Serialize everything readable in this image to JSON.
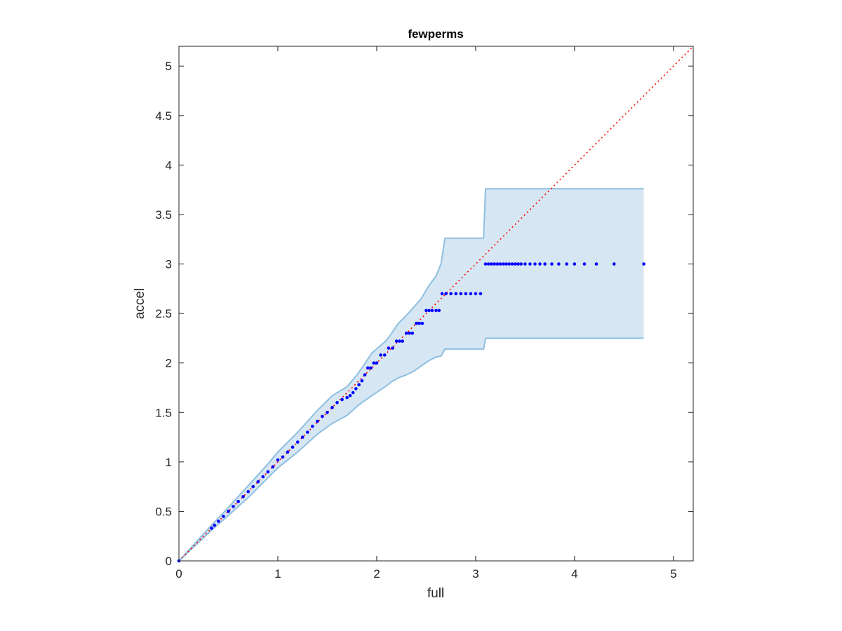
{
  "chart_data": {
    "type": "scatter",
    "title": "fewperms",
    "xlabel": "full",
    "ylabel": "accel",
    "xlim": [
      0,
      5.2
    ],
    "ylim": [
      0,
      5.2
    ],
    "xticks": [
      0,
      1,
      2,
      3,
      4,
      5
    ],
    "xtick_labels": [
      "0",
      "1",
      "2",
      "3",
      "4",
      "5"
    ],
    "yticks": [
      0,
      0.5,
      1,
      1.5,
      2,
      2.5,
      3,
      3.5,
      4,
      4.5,
      5
    ],
    "ytick_labels": [
      "0",
      "0.5",
      "1",
      "1.5",
      "2",
      "2.5",
      "3",
      "3.5",
      "4",
      "4.5",
      "5"
    ],
    "grid": false,
    "colors": {
      "points": "#0000ff",
      "reference_line": "#ff0000",
      "band_fill": "#d6e6f3",
      "band_edge": "#8fbfe0"
    },
    "reference_line": {
      "x": [
        0,
        5.2
      ],
      "y": [
        0,
        5.2
      ],
      "style": "dotted"
    },
    "confidence_band": {
      "x": [
        0,
        0.33,
        0.5,
        0.7,
        0.9,
        1.0,
        1.2,
        1.4,
        1.55,
        1.7,
        1.8,
        1.85,
        1.95,
        2.1,
        2.15,
        2.22,
        2.3,
        2.38,
        2.45,
        2.52,
        2.6,
        2.65,
        2.69,
        2.75,
        3.08,
        3.1,
        4.7
      ],
      "upper": [
        0,
        0.36,
        0.54,
        0.76,
        0.98,
        1.1,
        1.3,
        1.52,
        1.67,
        1.76,
        1.88,
        1.95,
        2.1,
        2.23,
        2.3,
        2.4,
        2.48,
        2.57,
        2.65,
        2.77,
        2.88,
        3.0,
        3.26,
        3.26,
        3.26,
        3.76,
        3.76
      ],
      "lower": [
        0,
        0.31,
        0.46,
        0.64,
        0.84,
        0.94,
        1.1,
        1.28,
        1.39,
        1.47,
        1.56,
        1.6,
        1.67,
        1.77,
        1.81,
        1.85,
        1.88,
        1.92,
        1.97,
        2.02,
        2.06,
        2.07,
        2.14,
        2.14,
        2.14,
        2.25,
        2.25
      ]
    },
    "series": [
      {
        "x": [
          0,
          0.33,
          0.36,
          0.4,
          0.45,
          0.5,
          0.55,
          0.6,
          0.65,
          0.7,
          0.75,
          0.8,
          0.85,
          0.9,
          0.95,
          1.0,
          1.05,
          1.1,
          1.15,
          1.2,
          1.25,
          1.3,
          1.35,
          1.4,
          1.45,
          1.5,
          1.55,
          1.6,
          1.65,
          1.7,
          1.73,
          1.76,
          1.79,
          1.82,
          1.85,
          1.88,
          1.91,
          1.94,
          1.97,
          2.0,
          2.04,
          2.08,
          2.12,
          2.16,
          2.2,
          2.23,
          2.26,
          2.3,
          2.33,
          2.36,
          2.4,
          2.43,
          2.46,
          2.5,
          2.53,
          2.56,
          2.6,
          2.63,
          2.66,
          2.7,
          2.75,
          2.8,
          2.85,
          2.9,
          2.95,
          3.0,
          3.05,
          3.1,
          3.13,
          3.16,
          3.19,
          3.22,
          3.25,
          3.28,
          3.31,
          3.34,
          3.37,
          3.4,
          3.43,
          3.46,
          3.5,
          3.55,
          3.6,
          3.65,
          3.7,
          3.77,
          3.84,
          3.92,
          4.0,
          4.1,
          4.22,
          4.4,
          4.7
        ],
        "y": [
          0,
          0.33,
          0.36,
          0.4,
          0.45,
          0.5,
          0.55,
          0.6,
          0.65,
          0.7,
          0.75,
          0.8,
          0.85,
          0.9,
          0.95,
          1.02,
          1.05,
          1.1,
          1.15,
          1.2,
          1.25,
          1.3,
          1.36,
          1.41,
          1.46,
          1.5,
          1.55,
          1.6,
          1.63,
          1.65,
          1.67,
          1.7,
          1.74,
          1.78,
          1.82,
          1.88,
          1.95,
          1.95,
          2.0,
          2.0,
          2.08,
          2.08,
          2.15,
          2.15,
          2.22,
          2.22,
          2.22,
          2.3,
          2.3,
          2.3,
          2.4,
          2.4,
          2.4,
          2.53,
          2.53,
          2.53,
          2.53,
          2.53,
          2.7,
          2.7,
          2.7,
          2.7,
          2.7,
          2.7,
          2.7,
          2.7,
          2.7,
          3.0,
          3.0,
          3.0,
          3.0,
          3.0,
          3.0,
          3.0,
          3.0,
          3.0,
          3.0,
          3.0,
          3.0,
          3.0,
          3.0,
          3.0,
          3.0,
          3.0,
          3.0,
          3.0,
          3.0,
          3.0,
          3.0,
          3.0,
          3.0,
          3.0,
          3.0
        ]
      }
    ]
  }
}
